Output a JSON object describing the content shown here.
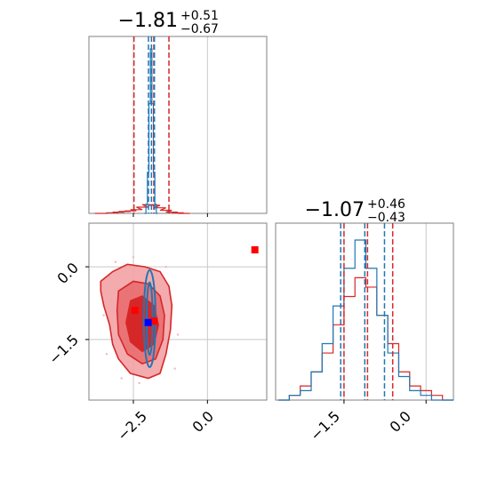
{
  "colors": {
    "red": "#d62728",
    "red_light": "#f19ca0",
    "red_mid": "#e8686c",
    "blue": "#1f77b4",
    "marker_blue": "#0000ff",
    "marker_red": "#ff0000",
    "grid": "#c8c8c8",
    "axis": "#808080"
  },
  "chart_data": [
    {
      "type": "histogram",
      "panel": "top-left marginal",
      "title": {
        "main": "−1.81",
        "sup": "+0.51",
        "sub": "−0.67"
      },
      "xlim": [
        -4.0,
        2.0
      ],
      "grid": true,
      "vlines": {
        "red_dashed": [
          -2.48,
          -1.81,
          -1.3
        ],
        "blue_dashed": [
          -1.99,
          -1.89,
          -1.79
        ]
      },
      "series": [
        {
          "color": "red",
          "x": [
            -3.6,
            -3.2,
            -3.0,
            -2.8,
            -2.6,
            -2.4,
            -2.2,
            -2.0,
            -1.8,
            -1.6,
            -1.4,
            -1.2,
            -1.0,
            -0.8
          ],
          "counts": [
            0,
            1,
            2,
            3,
            4,
            6,
            10,
            14,
            13,
            9,
            5,
            2,
            1,
            0
          ]
        },
        {
          "color": "blue",
          "x": [
            -2.1,
            -2.05,
            -2.0,
            -1.95,
            -1.9,
            -1.85,
            -1.8,
            -1.75,
            -1.7
          ],
          "counts": [
            0,
            10,
            45,
            120,
            180,
            120,
            45,
            10,
            0
          ]
        }
      ]
    },
    {
      "type": "histogram",
      "panel": "bottom-right marginal",
      "title": {
        "main": "−1.07",
        "sup": "+0.46",
        "sub": "−0.43"
      },
      "xlim": [
        -2.75,
        0.5
      ],
      "xticks": [
        -1.5,
        0.0
      ],
      "xtick_labels": [
        "−1.5",
        "0.0"
      ],
      "grid": true,
      "vlines": {
        "red_dashed": [
          -1.5,
          -1.07,
          -0.61
        ],
        "blue_dashed": [
          -1.56,
          -1.12,
          -0.76
        ]
      },
      "series": [
        {
          "color": "red",
          "x": [
            -2.6,
            -2.4,
            -2.2,
            -2.0,
            -1.8,
            -1.6,
            -1.4,
            -1.2,
            -1.0,
            -0.8,
            -0.6,
            -0.4,
            -0.2,
            0.0,
            0.2,
            0.4
          ],
          "counts": [
            0,
            1,
            3,
            6,
            10,
            16,
            22,
            26,
            24,
            18,
            12,
            6,
            3,
            2,
            1,
            0
          ]
        },
        {
          "color": "blue",
          "x": [
            -2.6,
            -2.4,
            -2.2,
            -2.0,
            -1.8,
            -1.6,
            -1.4,
            -1.2,
            -1.0,
            -0.8,
            -0.6,
            -0.4,
            -0.2,
            0.0,
            0.2,
            0.4
          ],
          "counts": [
            0,
            1,
            2,
            6,
            12,
            20,
            28,
            34,
            28,
            18,
            10,
            5,
            2,
            1,
            0,
            0
          ]
        }
      ]
    },
    {
      "type": "contour",
      "panel": "bottom-left joint",
      "xlim": [
        -4.0,
        2.0
      ],
      "ylim": [
        -2.75,
        0.9
      ],
      "xticks": [
        -2.5,
        0.0
      ],
      "xtick_labels": [
        "−2.5",
        "0.0"
      ],
      "yticks": [
        0.0,
        -1.5
      ],
      "ytick_labels": [
        "0.0",
        "−1.5"
      ],
      "grid": true,
      "red_contours": {
        "outer": [
          [
            -3.6,
            -0.3
          ],
          [
            -3.2,
            -0.1
          ],
          [
            -2.7,
            0.05
          ],
          [
            -2.1,
            0.0
          ],
          [
            -1.6,
            -0.1
          ],
          [
            -1.3,
            -0.4
          ],
          [
            -1.2,
            -0.8
          ],
          [
            -1.25,
            -1.3
          ],
          [
            -1.4,
            -1.8
          ],
          [
            -1.6,
            -2.2
          ],
          [
            -2.0,
            -2.3
          ],
          [
            -2.6,
            -2.2
          ],
          [
            -3.0,
            -1.9
          ],
          [
            -3.2,
            -1.6
          ],
          [
            -3.3,
            -1.2
          ],
          [
            -3.5,
            -0.8
          ],
          [
            -3.6,
            -0.5
          ]
        ],
        "inner": [
          [
            -3.0,
            -0.5
          ],
          [
            -2.5,
            -0.3
          ],
          [
            -2.0,
            -0.35
          ],
          [
            -1.6,
            -0.6
          ],
          [
            -1.45,
            -1.0
          ],
          [
            -1.5,
            -1.5
          ],
          [
            -1.75,
            -1.9
          ],
          [
            -2.2,
            -2.0
          ],
          [
            -2.7,
            -1.8
          ],
          [
            -3.0,
            -1.4
          ],
          [
            -3.05,
            -0.9
          ]
        ],
        "core": [
          [
            -2.6,
            -0.7
          ],
          [
            -2.2,
            -0.6
          ],
          [
            -1.8,
            -0.8
          ],
          [
            -1.65,
            -1.2
          ],
          [
            -1.8,
            -1.6
          ],
          [
            -2.2,
            -1.75
          ],
          [
            -2.6,
            -1.55
          ],
          [
            -2.75,
            -1.15
          ]
        ]
      },
      "blue_contours": {
        "center": [
          -1.95,
          -1.07
        ],
        "half_width": [
          0.2,
          0.1
        ],
        "half_height": [
          1.0,
          0.75
        ]
      },
      "scatter": [
        [
          -3.3,
          -0.2
        ],
        [
          -3.1,
          0.1
        ],
        [
          -2.9,
          -2.3
        ],
        [
          -2.5,
          0.2
        ],
        [
          -1.4,
          0.0
        ],
        [
          -1.1,
          -2.1
        ],
        [
          -3.5,
          -1.0
        ],
        [
          -1.0,
          -1.4
        ],
        [
          -2.3,
          -2.4
        ],
        [
          -3.4,
          -1.8
        ]
      ],
      "markers": [
        {
          "color": "marker_red",
          "x": 1.6,
          "y": 0.35
        },
        {
          "color": "marker_red",
          "x": -2.45,
          "y": -0.9
        },
        {
          "color": "marker_red",
          "x": -1.8,
          "y": -1.12
        },
        {
          "color": "marker_blue",
          "x": -2.0,
          "y": -1.15
        }
      ]
    }
  ]
}
